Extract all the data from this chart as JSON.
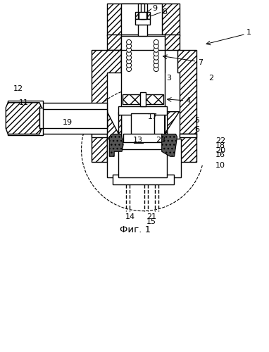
{
  "bg_color": "#ffffff",
  "line_color": "#000000",
  "fig_width": 3.82,
  "fig_height": 5.0,
  "caption": "Фиг. 1"
}
